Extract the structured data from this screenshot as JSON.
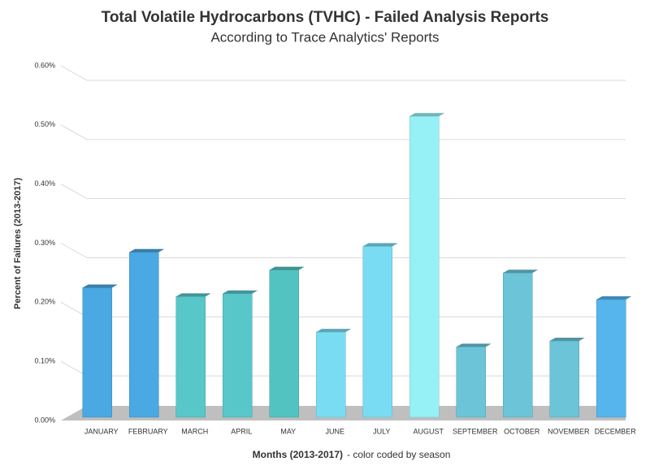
{
  "chart_data": {
    "type": "bar3d",
    "title": "Total Volatile Hydrocarbons (TVHC) - Failed Analysis Reports",
    "subtitle": "According to Trace Analytics' Reports",
    "y_label": "Percent of Failures (2013-2017)",
    "x_label": [
      "Months (2013-2017)",
      "- color coded by season"
    ],
    "categories": [
      "JANUARY",
      "FEBRUARY",
      "MARCH",
      "APRIL",
      "MAY",
      "JUNE",
      "JULY",
      "AUGUST",
      "SEPTEMBER",
      "OCTOBER",
      "NOVEMBER",
      "DECEMBER"
    ],
    "values": [
      0.23,
      0.29,
      0.215,
      0.22,
      0.26,
      0.155,
      0.3,
      0.52,
      0.13,
      0.255,
      0.14,
      0.21
    ],
    "colors": [
      "#4aa8e2",
      "#4aa8e2",
      "#58c7c9",
      "#58c7c9",
      "#52c3c0",
      "#7adcf2",
      "#7adcf2",
      "#96f1f6",
      "#6cc4d9",
      "#6cc4d9",
      "#6cc4d9",
      "#55b5ec"
    ],
    "ylim": [
      0,
      0.6
    ],
    "yticks": [
      {
        "value": 0,
        "label": "0.00%"
      },
      {
        "value": 0.1,
        "label": "0.10%"
      },
      {
        "value": 0.2,
        "label": "0.20%"
      },
      {
        "value": 0.3,
        "label": "0.30%"
      },
      {
        "value": 0.4,
        "label": "0.40%"
      },
      {
        "value": 0.5,
        "label": "0.50%"
      },
      {
        "value": 0.6,
        "label": "0.60%"
      }
    ],
    "grid": true
  }
}
